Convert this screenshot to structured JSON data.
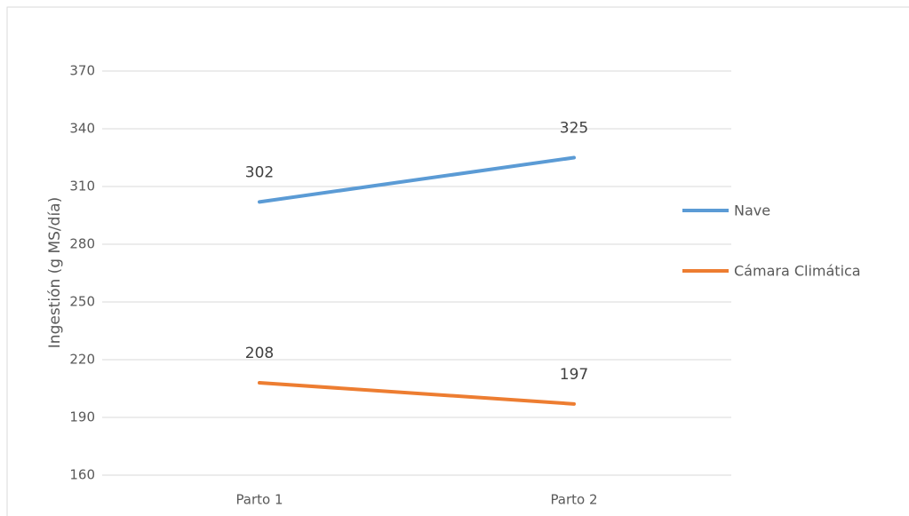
{
  "chart_data": {
    "type": "line",
    "y_label": "Ingestión (g MS/día)",
    "categories": [
      "Parto 1",
      "Parto 2"
    ],
    "series": [
      {
        "name": "Nave",
        "color": "#5b9bd5",
        "values": [
          302,
          325
        ]
      },
      {
        "name": "Cámara Climática",
        "color": "#ed7d31",
        "values": [
          208,
          197
        ]
      }
    ],
    "ylim": [
      160,
      370
    ],
    "yticks": [
      160,
      190,
      220,
      250,
      280,
      310,
      340,
      370
    ],
    "grid": true,
    "legend": "right"
  }
}
